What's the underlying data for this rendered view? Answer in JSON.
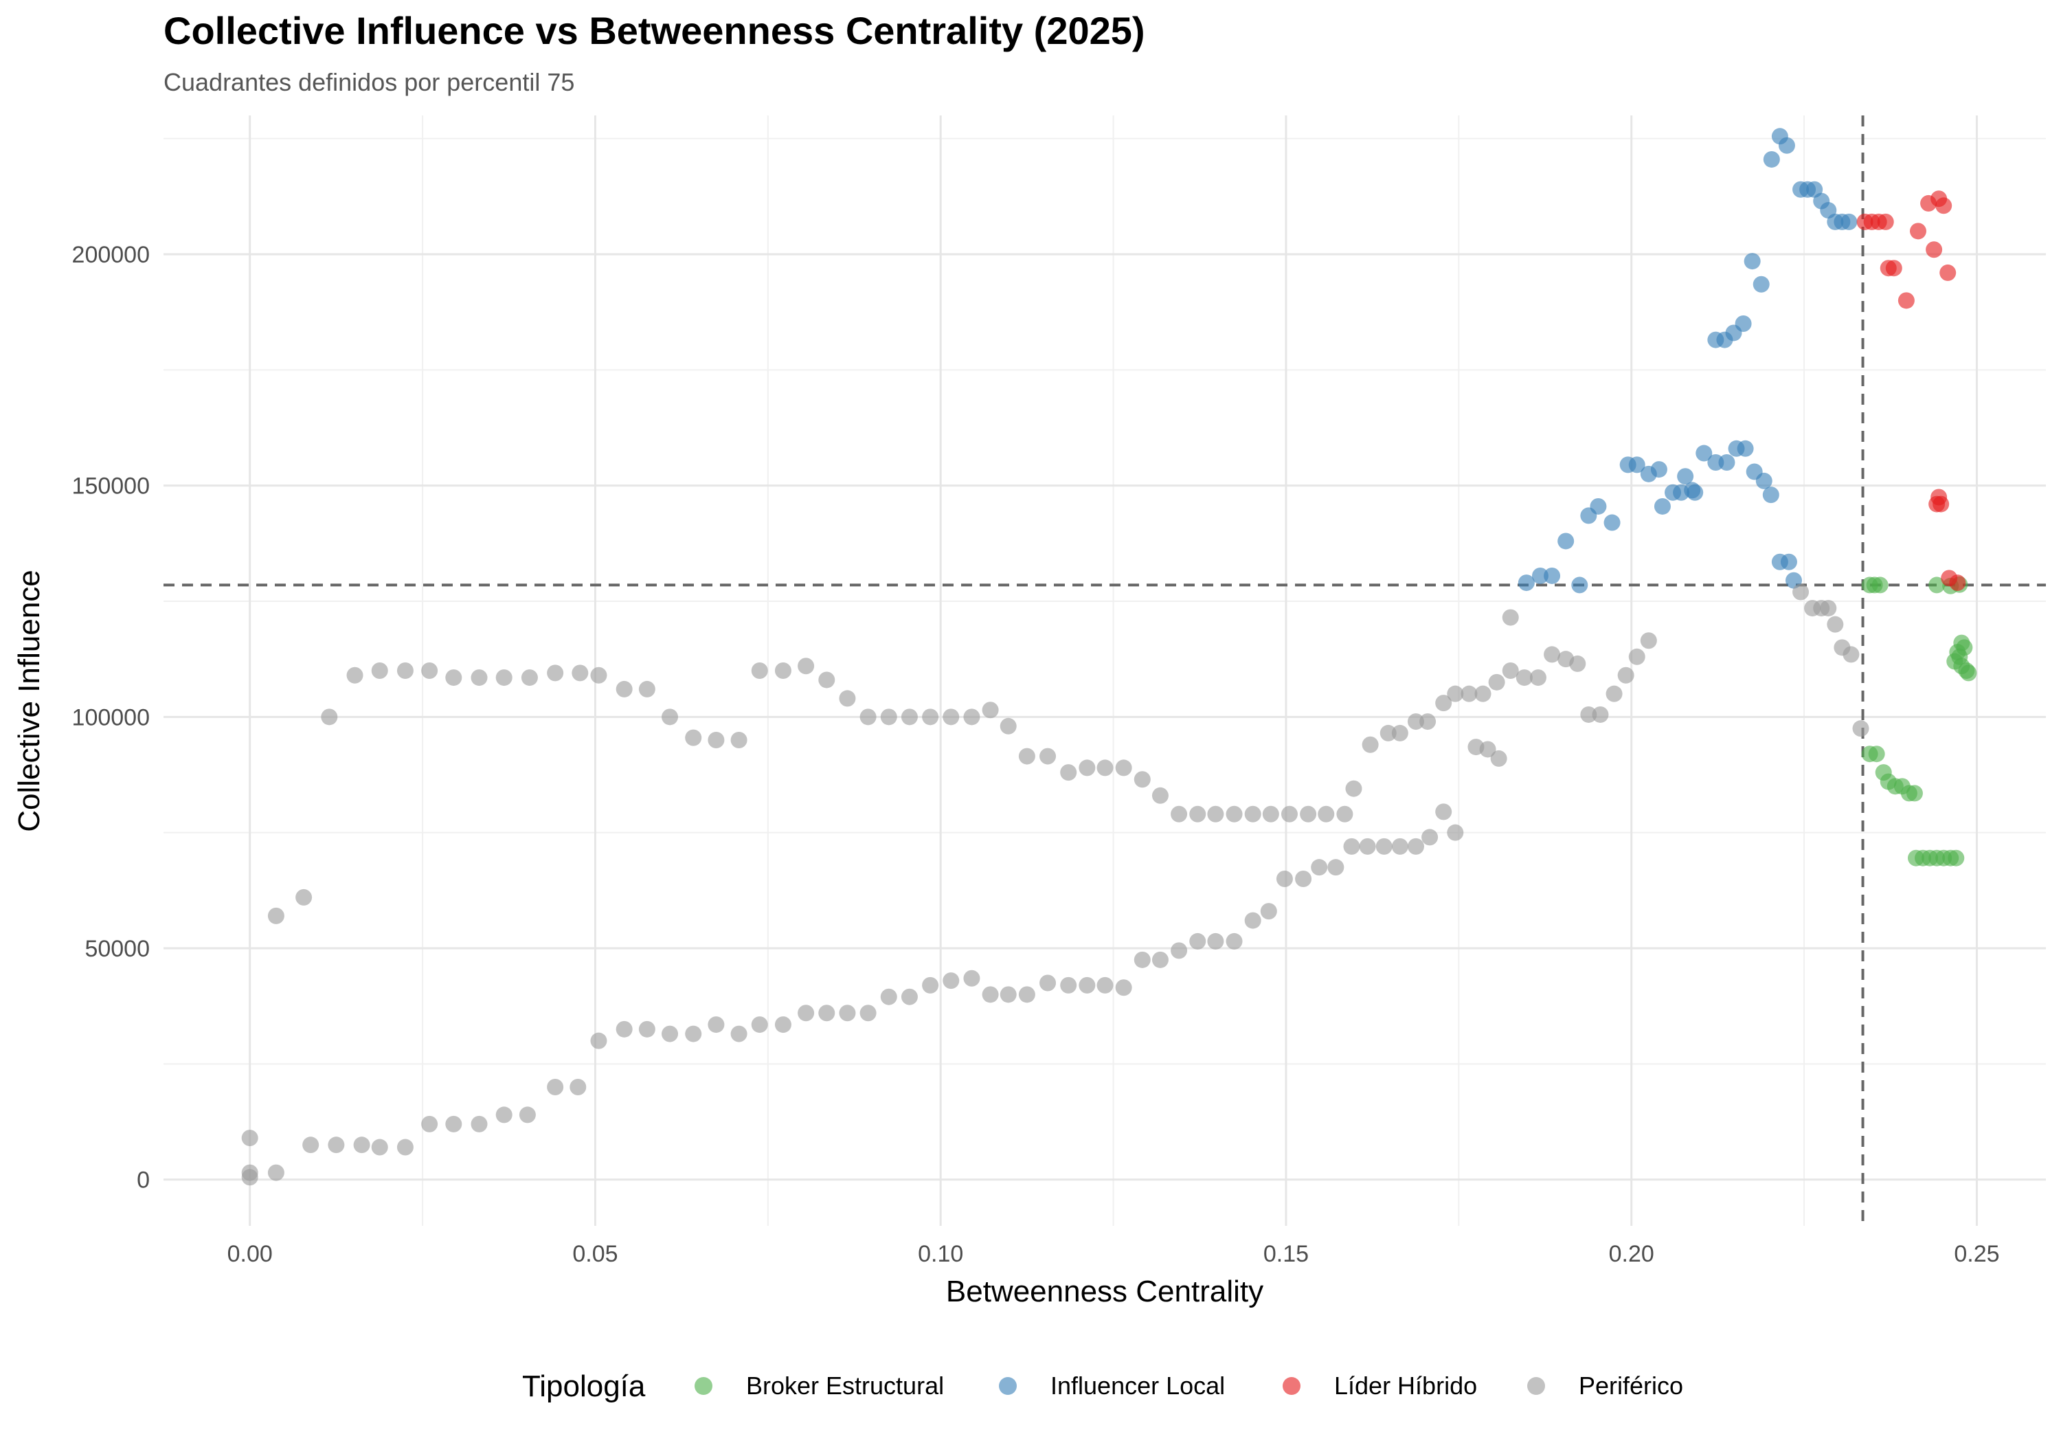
{
  "chart_data": {
    "type": "scatter",
    "title": "Collective Influence vs Betweenness Centrality (2025)",
    "subtitle": "Cuadrantes definidos por percentil 75",
    "xlabel": "Betweenness Centrality",
    "ylabel": "Collective Influence",
    "xlim": [
      -0.0125,
      0.26
    ],
    "ylim": [
      -10000,
      230000
    ],
    "x_ticks": [
      0,
      0.05,
      0.1,
      0.15,
      0.2,
      0.25
    ],
    "x_tick_labels": [
      "0.00",
      "0.05",
      "0.10",
      "0.15",
      "0.20",
      "0.25"
    ],
    "y_ticks": [
      0,
      50000,
      100000,
      150000,
      200000
    ],
    "y_tick_labels": [
      "0",
      "50000",
      "100000",
      "150000",
      "200000"
    ],
    "grid": true,
    "reference_lines": {
      "x_p75": 0.2335,
      "y_p75": 128500,
      "style": "dashed"
    },
    "legend": {
      "title": "Tipología",
      "position": "bottom"
    },
    "series": [
      {
        "name": "Broker Estructural",
        "color": "#4DAF4A",
        "points": [
          [
            0.2345,
            128500
          ],
          [
            0.2352,
            128500
          ],
          [
            0.236,
            128500
          ],
          [
            0.2442,
            128500
          ],
          [
            0.2462,
            128300
          ],
          [
            0.2475,
            128600
          ],
          [
            0.2478,
            116000
          ],
          [
            0.2482,
            115000
          ],
          [
            0.2472,
            114000
          ],
          [
            0.2468,
            112000
          ],
          [
            0.2478,
            111000
          ],
          [
            0.2485,
            110000
          ],
          [
            0.2488,
            109500
          ],
          [
            0.2475,
            113000
          ],
          [
            0.2345,
            92000
          ],
          [
            0.2355,
            92000
          ],
          [
            0.2365,
            88000
          ],
          [
            0.2372,
            86000
          ],
          [
            0.2382,
            85000
          ],
          [
            0.2392,
            85000
          ],
          [
            0.2402,
            83500
          ],
          [
            0.241,
            83500
          ],
          [
            0.2412,
            69500
          ],
          [
            0.2422,
            69500
          ],
          [
            0.2432,
            69500
          ],
          [
            0.2442,
            69500
          ],
          [
            0.2452,
            69500
          ],
          [
            0.2462,
            69500
          ],
          [
            0.247,
            69500
          ]
        ]
      },
      {
        "name": "Influencer Local",
        "color": "#377EB8",
        "points": [
          [
            0.2215,
            225500
          ],
          [
            0.2225,
            223500
          ],
          [
            0.2203,
            220500
          ],
          [
            0.2245,
            214000
          ],
          [
            0.2255,
            214000
          ],
          [
            0.2265,
            214000
          ],
          [
            0.2275,
            211500
          ],
          [
            0.2285,
            209500
          ],
          [
            0.2295,
            207000
          ],
          [
            0.2305,
            207000
          ],
          [
            0.2315,
            207000
          ],
          [
            0.2175,
            198500
          ],
          [
            0.2188,
            193500
          ],
          [
            0.2162,
            185000
          ],
          [
            0.2148,
            183000
          ],
          [
            0.2135,
            181500
          ],
          [
            0.2122,
            181500
          ],
          [
            0.1995,
            154500
          ],
          [
            0.2008,
            154500
          ],
          [
            0.2025,
            152500
          ],
          [
            0.204,
            153500
          ],
          [
            0.2078,
            152000
          ],
          [
            0.2105,
            157000
          ],
          [
            0.2122,
            155000
          ],
          [
            0.2138,
            155000
          ],
          [
            0.2152,
            158000
          ],
          [
            0.2165,
            158000
          ],
          [
            0.2178,
            153000
          ],
          [
            0.2192,
            151000
          ],
          [
            0.2202,
            148000
          ],
          [
            0.2045,
            145500
          ],
          [
            0.206,
            148500
          ],
          [
            0.2072,
            148500
          ],
          [
            0.2088,
            149000
          ],
          [
            0.2092,
            148500
          ],
          [
            0.1938,
            143500
          ],
          [
            0.1952,
            145500
          ],
          [
            0.1972,
            142000
          ],
          [
            0.1905,
            138000
          ],
          [
            0.1848,
            129000
          ],
          [
            0.1868,
            130500
          ],
          [
            0.1885,
            130500
          ],
          [
            0.1925,
            128500
          ],
          [
            0.2215,
            133500
          ],
          [
            0.2228,
            133500
          ],
          [
            0.2235,
            129500
          ]
        ]
      },
      {
        "name": "Líder Híbrido",
        "color": "#E41A1C",
        "points": [
          [
            0.2338,
            207000
          ],
          [
            0.2348,
            207000
          ],
          [
            0.2358,
            207000
          ],
          [
            0.2368,
            207000
          ],
          [
            0.243,
            211000
          ],
          [
            0.2445,
            212000
          ],
          [
            0.2452,
            210500
          ],
          [
            0.2415,
            205000
          ],
          [
            0.2438,
            201000
          ],
          [
            0.2458,
            196000
          ],
          [
            0.2372,
            197000
          ],
          [
            0.238,
            197000
          ],
          [
            0.2398,
            190000
          ],
          [
            0.2445,
            147500
          ],
          [
            0.2442,
            146000
          ],
          [
            0.2448,
            146000
          ],
          [
            0.246,
            130000
          ],
          [
            0.2472,
            129000
          ]
        ]
      },
      {
        "name": "Periférico",
        "color": "#999999",
        "points": [
          [
            0,
            9000
          ],
          [
            0,
            1500
          ],
          [
            0,
            500
          ],
          [
            0.0038,
            1500
          ],
          [
            0.0038,
            57000
          ],
          [
            0.0078,
            61000
          ],
          [
            0.0115,
            100000
          ],
          [
            0.0152,
            109000
          ],
          [
            0.0188,
            110000
          ],
          [
            0.0225,
            110000
          ],
          [
            0.026,
            110000
          ],
          [
            0.0295,
            108500
          ],
          [
            0.0332,
            108500
          ],
          [
            0.0368,
            108500
          ],
          [
            0.0405,
            108500
          ],
          [
            0.0442,
            109500
          ],
          [
            0.0478,
            109500
          ],
          [
            0.0505,
            109000
          ],
          [
            0.0542,
            106000
          ],
          [
            0.0575,
            106000
          ],
          [
            0.0608,
            100000
          ],
          [
            0.0642,
            95500
          ],
          [
            0.0675,
            95000
          ],
          [
            0.0708,
            95000
          ],
          [
            0.0738,
            110000
          ],
          [
            0.0772,
            110000
          ],
          [
            0.0805,
            111000
          ],
          [
            0.0835,
            108000
          ],
          [
            0.0865,
            104000
          ],
          [
            0.0895,
            100000
          ],
          [
            0.0925,
            100000
          ],
          [
            0.0955,
            100000
          ],
          [
            0.0985,
            100000
          ],
          [
            0.1015,
            100000
          ],
          [
            0.1045,
            100000
          ],
          [
            0.1072,
            101500
          ],
          [
            0.1098,
            98000
          ],
          [
            0.1125,
            91500
          ],
          [
            0.1155,
            91500
          ],
          [
            0.1185,
            88000
          ],
          [
            0.1212,
            89000
          ],
          [
            0.1238,
            89000
          ],
          [
            0.1265,
            89000
          ],
          [
            0.1292,
            86500
          ],
          [
            0.1318,
            83000
          ],
          [
            0.1345,
            79000
          ],
          [
            0.1372,
            79000
          ],
          [
            0.1398,
            79000
          ],
          [
            0.1425,
            79000
          ],
          [
            0.1452,
            79000
          ],
          [
            0.1478,
            79000
          ],
          [
            0.1505,
            79000
          ],
          [
            0.1532,
            79000
          ],
          [
            0.1558,
            79000
          ],
          [
            0.1585,
            79000
          ],
          [
            0.1598,
            84500
          ],
          [
            0.1622,
            94000
          ],
          [
            0.1648,
            96500
          ],
          [
            0.1665,
            96500
          ],
          [
            0.1688,
            99000
          ],
          [
            0.1705,
            99000
          ],
          [
            0.1728,
            103000
          ],
          [
            0.1745,
            105000
          ],
          [
            0.1765,
            105000
          ],
          [
            0.1785,
            105000
          ],
          [
            0.1805,
            107500
          ],
          [
            0.1825,
            110000
          ],
          [
            0.1845,
            108500
          ],
          [
            0.1865,
            108500
          ],
          [
            0.1885,
            113500
          ],
          [
            0.1905,
            112500
          ],
          [
            0.1922,
            111500
          ],
          [
            0.1825,
            121500
          ],
          [
            0.1775,
            93500
          ],
          [
            0.1792,
            93000
          ],
          [
            0.1808,
            91000
          ],
          [
            0.1938,
            100500
          ],
          [
            0.1955,
            100500
          ],
          [
            0.1975,
            105000
          ],
          [
            0.1992,
            109000
          ],
          [
            0.2008,
            113000
          ],
          [
            0.2025,
            116500
          ],
          [
            0.2245,
            127000
          ],
          [
            0.2262,
            123500
          ],
          [
            0.2275,
            123500
          ],
          [
            0.2285,
            123500
          ],
          [
            0.2295,
            120000
          ],
          [
            0.2305,
            115000
          ],
          [
            0.2318,
            113500
          ],
          [
            0.2332,
            97500
          ],
          [
            0.0088,
            7500
          ],
          [
            0.0125,
            7500
          ],
          [
            0.0162,
            7500
          ],
          [
            0.0188,
            7000
          ],
          [
            0.0225,
            7000
          ],
          [
            0.026,
            12000
          ],
          [
            0.0295,
            12000
          ],
          [
            0.0332,
            12000
          ],
          [
            0.0368,
            14000
          ],
          [
            0.0402,
            14000
          ],
          [
            0.0442,
            20000
          ],
          [
            0.0475,
            20000
          ],
          [
            0.0505,
            30000
          ],
          [
            0.0542,
            32500
          ],
          [
            0.0575,
            32500
          ],
          [
            0.0608,
            31500
          ],
          [
            0.0642,
            31500
          ],
          [
            0.0675,
            33500
          ],
          [
            0.0708,
            31500
          ],
          [
            0.0738,
            33500
          ],
          [
            0.0772,
            33500
          ],
          [
            0.0805,
            36000
          ],
          [
            0.0835,
            36000
          ],
          [
            0.0865,
            36000
          ],
          [
            0.0895,
            36000
          ],
          [
            0.0925,
            39500
          ],
          [
            0.0955,
            39500
          ],
          [
            0.0985,
            42000
          ],
          [
            0.1015,
            43000
          ],
          [
            0.1045,
            43500
          ],
          [
            0.1072,
            40000
          ],
          [
            0.1098,
            40000
          ],
          [
            0.1125,
            40000
          ],
          [
            0.1155,
            42500
          ],
          [
            0.1185,
            42000
          ],
          [
            0.1212,
            42000
          ],
          [
            0.1238,
            42000
          ],
          [
            0.1265,
            41500
          ],
          [
            0.1292,
            47500
          ],
          [
            0.1318,
            47500
          ],
          [
            0.1345,
            49500
          ],
          [
            0.1372,
            51500
          ],
          [
            0.1398,
            51500
          ],
          [
            0.1425,
            51500
          ],
          [
            0.1452,
            56000
          ],
          [
            0.1475,
            58000
          ],
          [
            0.1498,
            65000
          ],
          [
            0.1525,
            65000
          ],
          [
            0.1548,
            67500
          ],
          [
            0.1572,
            67500
          ],
          [
            0.1595,
            72000
          ],
          [
            0.1618,
            72000
          ],
          [
            0.1642,
            72000
          ],
          [
            0.1665,
            72000
          ],
          [
            0.1688,
            72000
          ],
          [
            0.1708,
            74000
          ],
          [
            0.1728,
            79500
          ],
          [
            0.1745,
            75000
          ]
        ]
      }
    ]
  }
}
